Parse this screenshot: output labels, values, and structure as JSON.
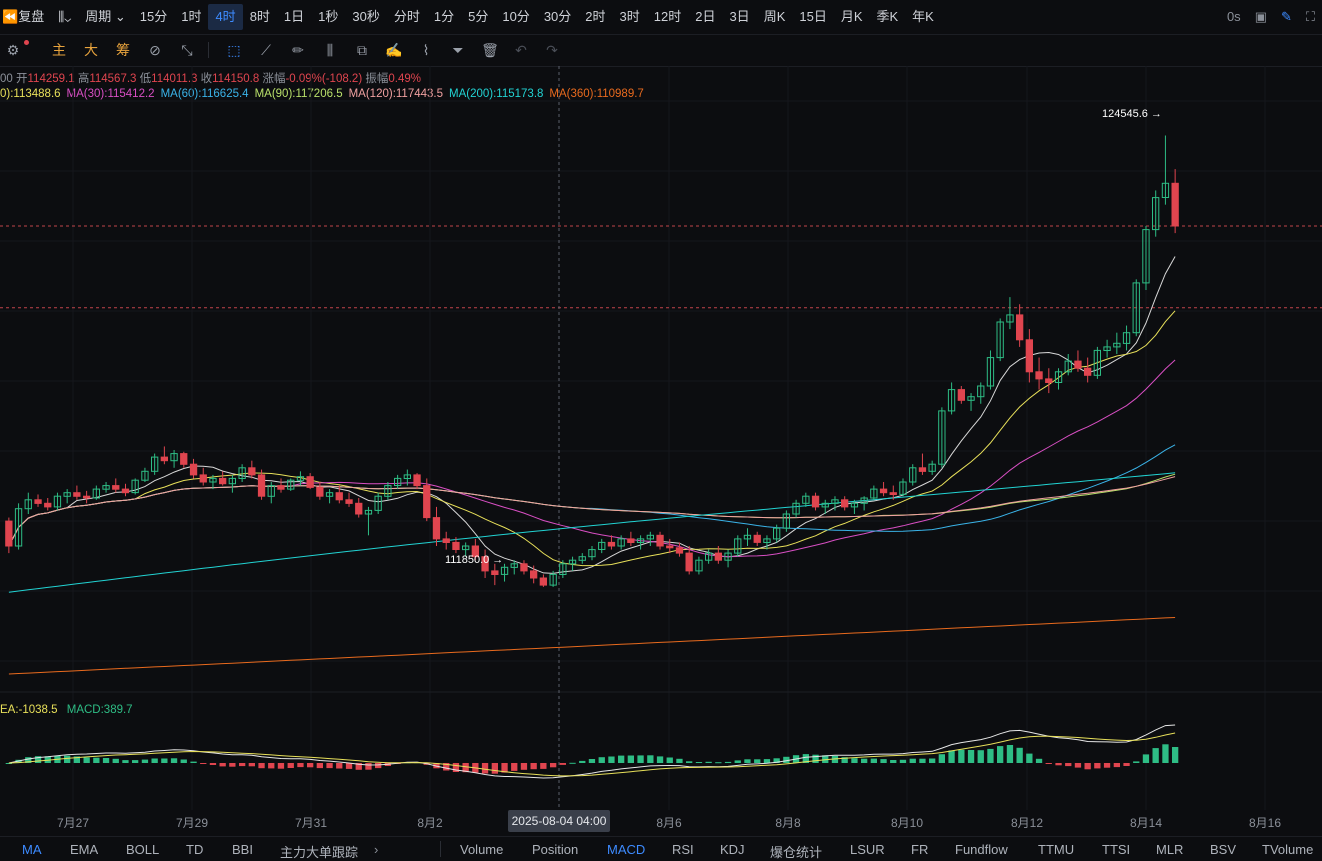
{
  "toolbar": {
    "replay_label": "复盘",
    "period_label": "周期",
    "timeframes": [
      "15分",
      "1时",
      "4时",
      "8时",
      "1日",
      "1秒",
      "30秒",
      "分时",
      "1分",
      "5分",
      "10分",
      "30分",
      "2时",
      "3时",
      "12时",
      "2日",
      "3日",
      "周K",
      "15日",
      "月K",
      "季K",
      "年K"
    ],
    "active_timeframe": "4时",
    "latency": "0s"
  },
  "draw_toolbar": {
    "main": "主",
    "big": "大",
    "chip": "筹"
  },
  "ohlc": {
    "time_frag": "00",
    "open_label": "开",
    "open": "114259.1",
    "high_label": "高",
    "high": "114567.3",
    "low_label": "低",
    "low": "114011.3",
    "close_label": "收",
    "close": "114150.8",
    "change_label": "涨幅",
    "change": "-0.09%(-108.2)",
    "amp_label": "振幅",
    "amp": "0.49%"
  },
  "ma_legend": [
    {
      "text": "0):113488.6",
      "color": "#e8e05a"
    },
    {
      "text": "MA(30):115412.2",
      "color": "#d94fc4"
    },
    {
      "text": "MA(60):116625.4",
      "color": "#3ab3e8"
    },
    {
      "text": "MA(90):117206.5",
      "color": "#b9e06a"
    },
    {
      "text": "MA(120):117443.5",
      "color": "#f0a0a0"
    },
    {
      "text": "MA(200):115173.8",
      "color": "#22d3d3"
    },
    {
      "text": "MA(360):110989.7",
      "color": "#e86a1e"
    }
  ],
  "macd_legend": {
    "dea": "EA:-1038.5",
    "macd": "MACD:389.7"
  },
  "high_marker": "124545.6 →",
  "low_marker": "111850.0 →",
  "dates": [
    "7月27",
    "7月29",
    "7月31",
    "8月2",
    "8月6",
    "8月8",
    "8月10",
    "8月12",
    "8月14",
    "8月16"
  ],
  "crosshair_time": "2025-08-04 04:00",
  "indicators_left": [
    "MA",
    "EMA",
    "BOLL",
    "TD",
    "BBI",
    "主力大单跟踪"
  ],
  "indicators_right": [
    "Volume",
    "Position",
    "MACD",
    "RSI",
    "KDJ",
    "爆仓统计",
    "LSUR",
    "FR",
    "Fundflow",
    "TTMU",
    "TTSI",
    "MLR",
    "BSV",
    "TVolume"
  ],
  "active_left": "MA",
  "active_right": "MACD",
  "colors": {
    "up": "#2ebd85",
    "down": "#e0454f",
    "accent": "#3d8bff"
  },
  "chart_data": {
    "type": "candlestick",
    "symbol_interval": "4时",
    "price_range": [
      108500,
      126500
    ],
    "candles": [
      [
        113700,
        113800,
        112800,
        113000
      ],
      [
        113000,
        114200,
        112900,
        114050
      ],
      [
        114050,
        114500,
        113900,
        114300
      ],
      [
        114300,
        114450,
        114100,
        114200
      ],
      [
        114200,
        114350,
        114000,
        114100
      ],
      [
        114100,
        114500,
        114000,
        114400
      ],
      [
        114400,
        114600,
        114200,
        114500
      ],
      [
        114500,
        114700,
        114300,
        114400
      ],
      [
        114400,
        114550,
        114200,
        114350
      ],
      [
        114350,
        114700,
        114300,
        114600
      ],
      [
        114600,
        114800,
        114500,
        114700
      ],
      [
        114700,
        114900,
        114500,
        114600
      ],
      [
        114600,
        114750,
        114400,
        114500
      ],
      [
        114500,
        114900,
        114450,
        114850
      ],
      [
        114850,
        115200,
        114800,
        115100
      ],
      [
        115100,
        115600,
        115000,
        115500
      ],
      [
        115500,
        115800,
        115300,
        115400
      ],
      [
        115400,
        115700,
        115200,
        115600
      ],
      [
        115600,
        115650,
        115200,
        115300
      ],
      [
        115300,
        115450,
        114900,
        115000
      ],
      [
        115000,
        115200,
        114700,
        114800
      ],
      [
        114800,
        115000,
        114600,
        114900
      ],
      [
        114900,
        115100,
        114700,
        114750
      ],
      [
        114750,
        115000,
        114500,
        114900
      ],
      [
        114900,
        115300,
        114800,
        115200
      ],
      [
        115200,
        115400,
        114900,
        115000
      ],
      [
        115000,
        115150,
        114300,
        114400
      ],
      [
        114400,
        114800,
        114200,
        114700
      ],
      [
        114700,
        114900,
        114500,
        114600
      ],
      [
        114600,
        114900,
        114550,
        114850
      ],
      [
        114850,
        115100,
        114700,
        114950
      ],
      [
        114950,
        115050,
        114600,
        114650
      ],
      [
        114650,
        114800,
        114300,
        114400
      ],
      [
        114400,
        114600,
        114200,
        114500
      ],
      [
        114500,
        114700,
        114200,
        114300
      ],
      [
        114300,
        114500,
        114100,
        114200
      ],
      [
        114200,
        114350,
        113800,
        113900
      ],
      [
        113900,
        114100,
        113300,
        114000
      ],
      [
        114000,
        114500,
        113900,
        114400
      ],
      [
        114400,
        114800,
        114300,
        114700
      ],
      [
        114700,
        115000,
        114600,
        114900
      ],
      [
        114900,
        115150,
        114700,
        115000
      ],
      [
        115000,
        115050,
        114600,
        114700
      ],
      [
        114700,
        114900,
        113700,
        113800
      ],
      [
        113800,
        114100,
        113000,
        113200
      ],
      [
        113200,
        113400,
        112900,
        113100
      ],
      [
        113100,
        113250,
        112800,
        112900
      ],
      [
        112900,
        113100,
        112700,
        113000
      ],
      [
        113000,
        113200,
        112600,
        112700
      ],
      [
        112700,
        112900,
        112100,
        112300
      ],
      [
        112300,
        112500,
        111900,
        112200
      ],
      [
        112200,
        112500,
        112000,
        112400
      ],
      [
        112400,
        112600,
        112200,
        112500
      ],
      [
        112500,
        112600,
        112200,
        112300
      ],
      [
        112300,
        112450,
        111950,
        112100
      ],
      [
        112100,
        112200,
        111850,
        111900
      ],
      [
        111900,
        112300,
        111850,
        112200
      ],
      [
        112200,
        112600,
        112100,
        112500
      ],
      [
        112500,
        112700,
        112300,
        112600
      ],
      [
        112600,
        112800,
        112500,
        112700
      ],
      [
        112700,
        113000,
        112600,
        112900
      ],
      [
        112900,
        113200,
        112800,
        113100
      ],
      [
        113100,
        113300,
        112900,
        113000
      ],
      [
        113000,
        113300,
        112900,
        113200
      ],
      [
        113200,
        113400,
        113000,
        113100
      ],
      [
        113100,
        113300,
        112900,
        113200
      ],
      [
        113200,
        113400,
        113000,
        113300
      ],
      [
        113300,
        113400,
        112900,
        113000
      ],
      [
        113000,
        113200,
        112800,
        112950
      ],
      [
        112950,
        113100,
        112700,
        112800
      ],
      [
        112800,
        113000,
        112200,
        112300
      ],
      [
        112300,
        112700,
        112200,
        112600
      ],
      [
        112600,
        112900,
        112500,
        112800
      ],
      [
        112800,
        113000,
        112500,
        112600
      ],
      [
        112600,
        112900,
        112400,
        112800
      ],
      [
        112800,
        113300,
        112700,
        113200
      ],
      [
        113200,
        113500,
        113000,
        113300
      ],
      [
        113300,
        113400,
        113000,
        113100
      ],
      [
        113100,
        113300,
        112900,
        113200
      ],
      [
        113200,
        113600,
        113100,
        113500
      ],
      [
        113500,
        114000,
        113400,
        113900
      ],
      [
        113900,
        114300,
        113800,
        114200
      ],
      [
        114200,
        114500,
        114100,
        114400
      ],
      [
        114400,
        114500,
        114000,
        114100
      ],
      [
        114100,
        114300,
        113900,
        114200
      ],
      [
        114200,
        114400,
        114000,
        114300
      ],
      [
        114300,
        114400,
        114000,
        114100
      ],
      [
        114100,
        114300,
        113900,
        114200
      ],
      [
        114200,
        114400,
        114000,
        114350
      ],
      [
        114350,
        114700,
        114300,
        114600
      ],
      [
        114600,
        114800,
        114400,
        114500
      ],
      [
        114500,
        114700,
        114300,
        114450
      ],
      [
        114450,
        114900,
        114400,
        114800
      ],
      [
        114800,
        115300,
        114700,
        115200
      ],
      [
        115200,
        115600,
        115000,
        115100
      ],
      [
        115100,
        115400,
        115000,
        115300
      ],
      [
        115300,
        116900,
        115200,
        116800
      ],
      [
        116800,
        117600,
        116700,
        117400
      ],
      [
        117400,
        117500,
        117000,
        117100
      ],
      [
        117100,
        117300,
        116800,
        117200
      ],
      [
        117200,
        117600,
        117000,
        117500
      ],
      [
        117500,
        118500,
        117400,
        118300
      ],
      [
        118300,
        119400,
        118200,
        119300
      ],
      [
        119300,
        120000,
        119100,
        119500
      ],
      [
        119500,
        119800,
        118600,
        118800
      ],
      [
        118800,
        119100,
        117600,
        117900
      ],
      [
        117900,
        118300,
        117400,
        117700
      ],
      [
        117700,
        118000,
        117300,
        117600
      ],
      [
        117600,
        118000,
        117400,
        117900
      ],
      [
        117900,
        118400,
        117800,
        118200
      ],
      [
        118200,
        118500,
        117900,
        118000
      ],
      [
        118000,
        118300,
        117600,
        117800
      ],
      [
        117800,
        118600,
        117700,
        118500
      ],
      [
        118500,
        118800,
        118300,
        118600
      ],
      [
        118600,
        119000,
        118400,
        118700
      ],
      [
        118700,
        119200,
        118500,
        119000
      ],
      [
        119000,
        120500,
        118900,
        120400
      ],
      [
        120400,
        122000,
        120200,
        121900
      ],
      [
        121900,
        123000,
        121700,
        122800
      ],
      [
        122800,
        124545.6,
        122600,
        123200
      ],
      [
        123200,
        123600,
        121800,
        122000
      ]
    ]
  }
}
